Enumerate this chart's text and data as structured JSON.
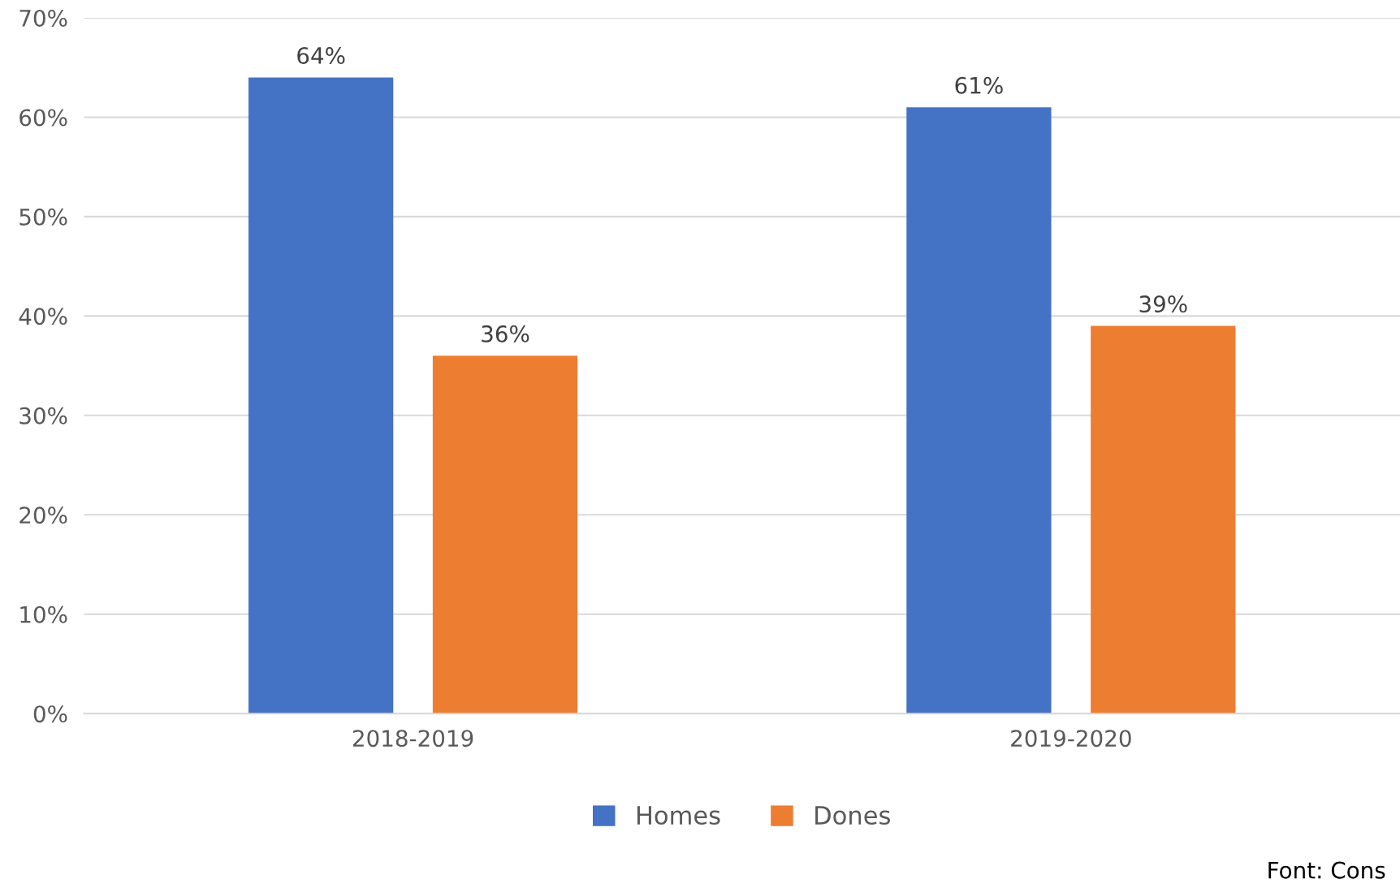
{
  "chart_data": {
    "type": "bar",
    "categories": [
      "2018-2019",
      "2019-2020"
    ],
    "series": [
      {
        "name": "Homes",
        "color": "#4472c4",
        "values": [
          64,
          61
        ],
        "value_labels": [
          "64%",
          "61%"
        ]
      },
      {
        "name": "Dones",
        "color": "#ed7d31",
        "values": [
          36,
          39
        ],
        "value_labels": [
          "36%",
          "39%"
        ]
      }
    ],
    "ylim": [
      0,
      70
    ],
    "yticks": [
      {
        "value": 0,
        "label": "0%"
      },
      {
        "value": 10,
        "label": "10%"
      },
      {
        "value": 20,
        "label": "20%"
      },
      {
        "value": 30,
        "label": "30%"
      },
      {
        "value": 40,
        "label": "40%"
      },
      {
        "value": 50,
        "label": "50%"
      },
      {
        "value": 60,
        "label": "60%"
      },
      {
        "value": 70,
        "label": "70%"
      }
    ],
    "grid": "y",
    "legend": "bottom",
    "annotations": [
      "Font: Cons"
    ]
  }
}
